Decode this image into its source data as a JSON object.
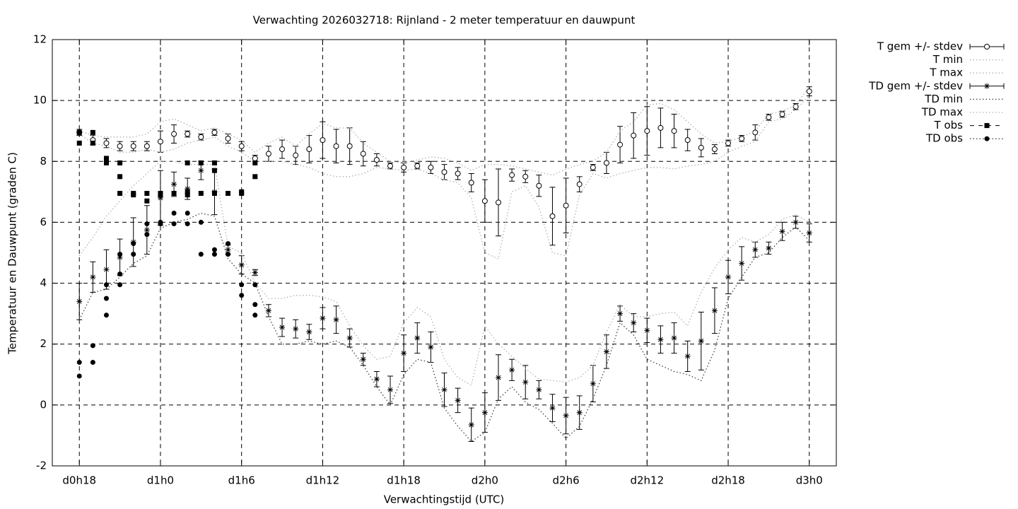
{
  "chart_data": {
    "type": "errorbar-line",
    "title": "Verwachting 2026032718: Rijnland - 2 meter temperatuur en dauwpunt",
    "x_label": "Verwachtingstijd (UTC)",
    "y_label": "Temperatuur en Dauwpunt (graden C)",
    "xlim": [
      16,
      74
    ],
    "ylim": [
      -2,
      12
    ],
    "xticks": [
      {
        "value": 18,
        "label": "d0h18"
      },
      {
        "value": 24,
        "label": "d1h0"
      },
      {
        "value": 30,
        "label": "d1h6"
      },
      {
        "value": 36,
        "label": "d1h12"
      },
      {
        "value": 42,
        "label": "d1h18"
      },
      {
        "value": 48,
        "label": "d2h0"
      },
      {
        "value": 54,
        "label": "d2h6"
      },
      {
        "value": 60,
        "label": "d2h12"
      },
      {
        "value": 66,
        "label": "d2h18"
      },
      {
        "value": 72,
        "label": "d3h0"
      }
    ],
    "yticks": [
      -2,
      0,
      2,
      4,
      6,
      8,
      10,
      12
    ],
    "grid": true,
    "legend": "right",
    "x": [
      18,
      19,
      20,
      21,
      22,
      23,
      24,
      25,
      26,
      27,
      28,
      29,
      30,
      31,
      32,
      33,
      34,
      35,
      36,
      37,
      38,
      39,
      40,
      41,
      42,
      43,
      44,
      45,
      46,
      47,
      48,
      49,
      50,
      51,
      52,
      53,
      54,
      55,
      56,
      57,
      58,
      59,
      60,
      61,
      62,
      63,
      64,
      65,
      66,
      67,
      68,
      69,
      70,
      71,
      72
    ],
    "series": [
      {
        "name": "T gem +/- stdev",
        "style": "errorbars",
        "marker": "circle",
        "color": "#000000",
        "values": [
          8.95,
          8.7,
          8.6,
          8.5,
          8.5,
          8.5,
          8.65,
          8.9,
          8.9,
          8.8,
          8.95,
          8.75,
          8.5,
          8.1,
          8.25,
          8.4,
          8.2,
          8.4,
          8.7,
          8.5,
          8.5,
          8.25,
          8.05,
          7.85,
          7.8,
          7.85,
          7.8,
          7.65,
          7.6,
          7.3,
          6.7,
          6.65,
          7.55,
          7.5,
          7.2,
          6.2,
          6.55,
          7.25,
          7.8,
          7.95,
          8.55,
          8.85,
          9.0,
          9.1,
          9.0,
          8.7,
          8.45,
          8.4,
          8.6,
          8.75,
          8.95,
          9.45,
          9.55,
          9.8,
          10.3
        ],
        "errors": [
          0.1,
          0.15,
          0.15,
          0.15,
          0.15,
          0.15,
          0.35,
          0.3,
          0.1,
          0.1,
          0.1,
          0.15,
          0.15,
          0.1,
          0.25,
          0.3,
          0.3,
          0.45,
          0.6,
          0.55,
          0.6,
          0.4,
          0.2,
          0.1,
          0.15,
          0.1,
          0.2,
          0.25,
          0.2,
          0.3,
          0.7,
          1.1,
          0.2,
          0.2,
          0.35,
          0.95,
          0.9,
          0.25,
          0.1,
          0.35,
          0.6,
          0.75,
          0.8,
          0.65,
          0.55,
          0.35,
          0.3,
          0.15,
          0.1,
          0.1,
          0.25,
          0.1,
          0.1,
          0.1,
          0.15
        ]
      },
      {
        "name": "T min",
        "style": "dotted",
        "color": "#b0b0b0",
        "values": [
          8.9,
          8.6,
          8.5,
          8.3,
          8.3,
          8.4,
          8.3,
          8.4,
          8.6,
          8.7,
          8.8,
          8.5,
          8.3,
          8.0,
          8.0,
          8.0,
          7.9,
          7.8,
          7.6,
          7.5,
          7.5,
          7.6,
          7.8,
          7.75,
          7.7,
          7.75,
          7.6,
          7.4,
          7.3,
          6.8,
          5.0,
          4.8,
          7.0,
          7.2,
          6.5,
          5.0,
          4.9,
          6.9,
          7.6,
          7.45,
          7.6,
          7.7,
          7.8,
          7.8,
          7.75,
          7.85,
          7.9,
          8.0,
          8.3,
          8.5,
          8.65,
          9.3,
          9.4,
          9.7,
          10.15
        ]
      },
      {
        "name": "T max",
        "style": "dotted",
        "color": "#b0b0b0",
        "values": [
          9.0,
          8.85,
          8.8,
          8.8,
          8.8,
          8.9,
          9.3,
          9.4,
          9.2,
          9.0,
          9.1,
          8.9,
          8.7,
          8.3,
          8.6,
          8.8,
          8.5,
          8.9,
          9.25,
          9.1,
          9.1,
          8.6,
          8.3,
          8.0,
          7.95,
          8.05,
          8.15,
          8.1,
          7.95,
          7.7,
          7.9,
          7.9,
          7.85,
          7.75,
          7.65,
          7.55,
          7.75,
          7.9,
          8.0,
          8.3,
          9.0,
          9.3,
          9.85,
          9.9,
          9.7,
          9.3,
          8.9,
          8.6,
          8.65,
          8.8,
          9.0,
          9.55,
          9.65,
          9.85,
          10.45
        ]
      },
      {
        "name": "TD gem +/- stdev",
        "style": "errorbars",
        "marker": "star",
        "color": "#000000",
        "values": [
          3.4,
          4.2,
          4.45,
          4.85,
          5.35,
          5.75,
          6.8,
          7.25,
          7.1,
          7.7,
          7.0,
          5.1,
          4.6,
          4.35,
          3.1,
          2.55,
          2.5,
          2.4,
          2.85,
          2.8,
          2.2,
          1.5,
          0.85,
          0.5,
          1.7,
          2.2,
          1.9,
          0.5,
          0.15,
          -0.65,
          -0.25,
          0.9,
          1.15,
          0.75,
          0.5,
          -0.1,
          -0.35,
          -0.25,
          0.7,
          1.75,
          3.0,
          2.7,
          2.45,
          2.15,
          2.2,
          1.6,
          2.1,
          3.1,
          4.2,
          4.65,
          5.1,
          5.15,
          5.7,
          6.0,
          5.65
        ],
        "errors": [
          0.6,
          0.5,
          0.65,
          0.6,
          0.8,
          0.8,
          0.9,
          0.4,
          0.35,
          0.3,
          0.75,
          0.15,
          0.3,
          0.1,
          0.2,
          0.3,
          0.3,
          0.25,
          0.35,
          0.45,
          0.3,
          0.2,
          0.25,
          0.45,
          0.6,
          0.5,
          0.5,
          0.55,
          0.4,
          0.55,
          0.65,
          0.75,
          0.35,
          0.55,
          0.3,
          0.45,
          0.6,
          0.55,
          0.6,
          0.55,
          0.25,
          0.3,
          0.4,
          0.45,
          0.5,
          0.5,
          0.95,
          0.75,
          0.55,
          0.55,
          0.25,
          0.2,
          0.3,
          0.2,
          0.3
        ]
      },
      {
        "name": "TD min",
        "style": "dotted",
        "color": "#404040",
        "values": [
          2.8,
          3.7,
          3.8,
          4.2,
          4.65,
          4.9,
          5.8,
          6.0,
          6.1,
          6.3,
          6.2,
          4.8,
          4.3,
          4.0,
          2.9,
          2.0,
          2.0,
          2.1,
          2.0,
          2.1,
          1.9,
          1.3,
          0.6,
          0.0,
          1.0,
          1.5,
          1.4,
          -0.1,
          -0.7,
          -1.2,
          -0.9,
          0.2,
          0.6,
          0.1,
          -0.15,
          -0.6,
          -1.1,
          -0.7,
          0.2,
          1.3,
          2.7,
          2.3,
          1.5,
          1.3,
          1.1,
          1.0,
          0.8,
          1.8,
          3.5,
          4.2,
          4.85,
          5.0,
          5.5,
          5.85,
          5.4
        ]
      },
      {
        "name": "TD max",
        "style": "dotted",
        "color": "#b0b0b0",
        "values": [
          4.9,
          5.5,
          6.2,
          6.7,
          7.2,
          7.6,
          8.0,
          8.0,
          7.9,
          7.9,
          7.9,
          5.2,
          5.0,
          4.0,
          3.5,
          3.5,
          3.6,
          3.6,
          3.55,
          3.4,
          2.6,
          1.95,
          1.5,
          1.6,
          2.7,
          3.2,
          2.9,
          1.5,
          0.9,
          0.65,
          2.6,
          2.0,
          1.6,
          1.2,
          0.85,
          0.8,
          0.75,
          0.9,
          1.3,
          2.4,
          3.3,
          2.9,
          2.9,
          3.0,
          3.05,
          2.6,
          3.7,
          4.5,
          5.1,
          5.5,
          5.35,
          5.6,
          6.1,
          6.25,
          6.0
        ]
      },
      {
        "name": "T obs",
        "style": "points",
        "marker": "square",
        "color": "#000000",
        "x": [
          18,
          18,
          19,
          19,
          20,
          20,
          21,
          21,
          21,
          22,
          22,
          23,
          23,
          24,
          24,
          25,
          26,
          26,
          26,
          27,
          27,
          28,
          28,
          28,
          29,
          30,
          30,
          31,
          31
        ],
        "values": [
          8.95,
          8.6,
          8.95,
          8.6,
          8.1,
          7.95,
          7.95,
          7.5,
          6.95,
          6.9,
          6.95,
          6.95,
          6.7,
          6.95,
          6.9,
          6.95,
          7.95,
          6.9,
          7.0,
          7.95,
          6.95,
          7.95,
          7.7,
          6.95,
          6.95,
          7.0,
          6.95,
          7.95,
          7.5
        ]
      },
      {
        "name": "TD obs",
        "style": "points",
        "marker": "circle-filled",
        "color": "#000000",
        "x": [
          18,
          18,
          19,
          19,
          20,
          20,
          20,
          21,
          21,
          21,
          22,
          22,
          23,
          23,
          24,
          24,
          25,
          25,
          26,
          26,
          27,
          27,
          27,
          28,
          28,
          29,
          29,
          30,
          30,
          31,
          31,
          31
        ],
        "values": [
          1.4,
          0.95,
          1.95,
          1.4,
          3.95,
          3.5,
          2.95,
          4.95,
          4.3,
          3.95,
          5.3,
          4.95,
          5.95,
          5.6,
          6.0,
          5.95,
          6.3,
          5.95,
          6.3,
          5.95,
          6.0,
          4.95,
          6.95,
          5.1,
          4.95,
          5.3,
          4.95,
          3.95,
          3.6,
          3.95,
          3.3,
          2.95
        ]
      }
    ]
  }
}
